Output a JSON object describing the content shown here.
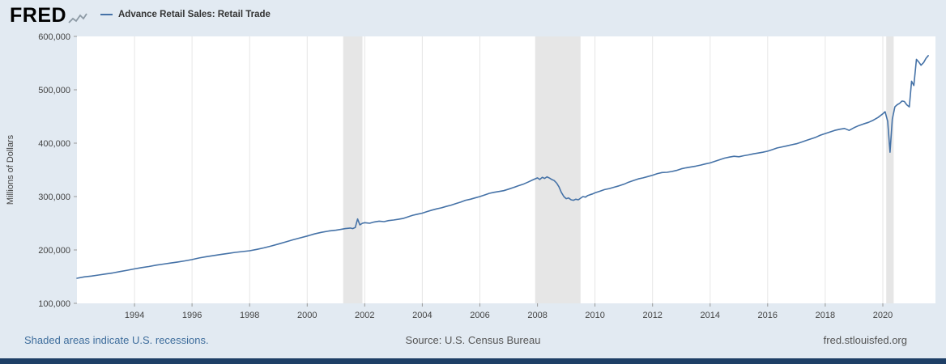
{
  "header": {
    "logo": "FRED",
    "legend_label": "Advance Retail Sales: Retail Trade"
  },
  "footer": {
    "recession_note": "Shaded areas indicate U.S. recessions.",
    "source": "Source: U.S. Census Bureau",
    "site": "fred.stlouisfed.org"
  },
  "colors": {
    "background": "#e2eaf2",
    "line": "#4572a7",
    "recession_band": "#e6e6e6",
    "gridline": "#e6e6e6",
    "link_blue": "#3e6d9c",
    "bottom_bar": "#1e3f66"
  },
  "chart_data": {
    "type": "line",
    "title": "Advance Retail Sales: Retail Trade",
    "xlabel": "",
    "ylabel": "Millions of Dollars",
    "xlim": [
      1992.0,
      2021.83
    ],
    "ylim": [
      100000,
      600000
    ],
    "grid": "vertical-only",
    "legend_position": "top-left",
    "line_color": "#4572a7",
    "recession_color": "#e6e6e6",
    "grid_color": "#e6e6e6",
    "tick_color": "#999999",
    "y_ticks": [
      {
        "value": 100000,
        "label": "100,000"
      },
      {
        "value": 200000,
        "label": "200,000"
      },
      {
        "value": 300000,
        "label": "300,000"
      },
      {
        "value": 400000,
        "label": "400,000"
      },
      {
        "value": 500000,
        "label": "500,000"
      },
      {
        "value": 600000,
        "label": "600,000"
      }
    ],
    "x_ticks": [
      {
        "value": 1994,
        "label": "1994"
      },
      {
        "value": 1996,
        "label": "1996"
      },
      {
        "value": 1998,
        "label": "1998"
      },
      {
        "value": 2000,
        "label": "2000"
      },
      {
        "value": 2002,
        "label": "2002"
      },
      {
        "value": 2004,
        "label": "2004"
      },
      {
        "value": 2006,
        "label": "2006"
      },
      {
        "value": 2008,
        "label": "2008"
      },
      {
        "value": 2010,
        "label": "2010"
      },
      {
        "value": 2012,
        "label": "2012"
      },
      {
        "value": 2014,
        "label": "2014"
      },
      {
        "value": 2016,
        "label": "2016"
      },
      {
        "value": 2018,
        "label": "2018"
      },
      {
        "value": 2020,
        "label": "2020"
      }
    ],
    "recessions": [
      [
        2001.25,
        2001.92
      ],
      [
        2007.92,
        2009.5
      ],
      [
        2020.12,
        2020.38
      ]
    ],
    "series": [
      {
        "name": "Advance Retail Sales: Retail Trade",
        "units": "Millions of Dollars",
        "points": [
          [
            1992.0,
            147000
          ],
          [
            1992.25,
            149500
          ],
          [
            1992.5,
            151000
          ],
          [
            1992.75,
            153000
          ],
          [
            1993.0,
            155000
          ],
          [
            1993.25,
            157000
          ],
          [
            1993.5,
            159500
          ],
          [
            1993.75,
            162000
          ],
          [
            1994.0,
            164500
          ],
          [
            1994.25,
            167000
          ],
          [
            1994.5,
            169000
          ],
          [
            1994.75,
            171500
          ],
          [
            1995.0,
            173500
          ],
          [
            1995.25,
            175500
          ],
          [
            1995.5,
            177500
          ],
          [
            1995.75,
            179500
          ],
          [
            1996.0,
            182000
          ],
          [
            1996.25,
            185000
          ],
          [
            1996.5,
            187500
          ],
          [
            1996.75,
            189500
          ],
          [
            1997.0,
            191500
          ],
          [
            1997.25,
            193500
          ],
          [
            1997.5,
            195500
          ],
          [
            1997.75,
            197000
          ],
          [
            1998.0,
            198500
          ],
          [
            1998.25,
            201000
          ],
          [
            1998.5,
            204000
          ],
          [
            1998.75,
            207500
          ],
          [
            1999.0,
            211000
          ],
          [
            1999.25,
            215000
          ],
          [
            1999.5,
            219000
          ],
          [
            1999.75,
            222500
          ],
          [
            2000.0,
            226000
          ],
          [
            2000.25,
            230000
          ],
          [
            2000.5,
            233000
          ],
          [
            2000.75,
            235500
          ],
          [
            2001.0,
            237000
          ],
          [
            2001.17,
            238500
          ],
          [
            2001.33,
            240000
          ],
          [
            2001.5,
            241000
          ],
          [
            2001.58,
            240000
          ],
          [
            2001.67,
            242000
          ],
          [
            2001.75,
            258000
          ],
          [
            2001.83,
            247000
          ],
          [
            2001.92,
            250000
          ],
          [
            2002.0,
            251000
          ],
          [
            2002.17,
            250000
          ],
          [
            2002.33,
            252500
          ],
          [
            2002.5,
            254000
          ],
          [
            2002.67,
            253000
          ],
          [
            2002.83,
            255000
          ],
          [
            2003.0,
            256000
          ],
          [
            2003.17,
            257500
          ],
          [
            2003.33,
            259000
          ],
          [
            2003.5,
            262000
          ],
          [
            2003.67,
            265000
          ],
          [
            2003.83,
            267000
          ],
          [
            2004.0,
            269000
          ],
          [
            2004.17,
            272000
          ],
          [
            2004.33,
            274500
          ],
          [
            2004.5,
            277000
          ],
          [
            2004.67,
            279000
          ],
          [
            2004.83,
            281500
          ],
          [
            2005.0,
            284000
          ],
          [
            2005.17,
            287000
          ],
          [
            2005.33,
            289500
          ],
          [
            2005.5,
            293000
          ],
          [
            2005.67,
            295000
          ],
          [
            2005.83,
            297500
          ],
          [
            2006.0,
            300000
          ],
          [
            2006.17,
            303000
          ],
          [
            2006.33,
            306000
          ],
          [
            2006.5,
            308000
          ],
          [
            2006.67,
            309500
          ],
          [
            2006.83,
            311000
          ],
          [
            2007.0,
            314000
          ],
          [
            2007.17,
            317000
          ],
          [
            2007.33,
            320000
          ],
          [
            2007.5,
            323000
          ],
          [
            2007.67,
            327000
          ],
          [
            2007.83,
            331000
          ],
          [
            2008.0,
            335000
          ],
          [
            2008.08,
            332000
          ],
          [
            2008.17,
            336000
          ],
          [
            2008.25,
            334000
          ],
          [
            2008.33,
            337000
          ],
          [
            2008.42,
            334500
          ],
          [
            2008.5,
            332000
          ],
          [
            2008.58,
            330000
          ],
          [
            2008.67,
            325000
          ],
          [
            2008.75,
            318000
          ],
          [
            2008.83,
            308000
          ],
          [
            2008.92,
            300000
          ],
          [
            2009.0,
            296000
          ],
          [
            2009.08,
            297500
          ],
          [
            2009.17,
            294000
          ],
          [
            2009.25,
            293000
          ],
          [
            2009.33,
            295000
          ],
          [
            2009.42,
            294000
          ],
          [
            2009.5,
            297000
          ],
          [
            2009.58,
            300000
          ],
          [
            2009.67,
            299000
          ],
          [
            2009.75,
            302000
          ],
          [
            2009.83,
            303500
          ],
          [
            2009.92,
            305000
          ],
          [
            2010.0,
            307000
          ],
          [
            2010.17,
            310000
          ],
          [
            2010.33,
            313000
          ],
          [
            2010.5,
            315000
          ],
          [
            2010.67,
            317500
          ],
          [
            2010.83,
            320000
          ],
          [
            2011.0,
            323000
          ],
          [
            2011.17,
            327000
          ],
          [
            2011.33,
            330000
          ],
          [
            2011.5,
            333000
          ],
          [
            2011.67,
            335000
          ],
          [
            2011.83,
            337500
          ],
          [
            2012.0,
            340000
          ],
          [
            2012.17,
            343000
          ],
          [
            2012.33,
            345000
          ],
          [
            2012.5,
            345500
          ],
          [
            2012.67,
            347000
          ],
          [
            2012.83,
            349000
          ],
          [
            2013.0,
            352000
          ],
          [
            2013.17,
            354000
          ],
          [
            2013.33,
            355500
          ],
          [
            2013.5,
            357000
          ],
          [
            2013.67,
            359000
          ],
          [
            2013.83,
            361000
          ],
          [
            2014.0,
            363000
          ],
          [
            2014.17,
            366000
          ],
          [
            2014.33,
            369000
          ],
          [
            2014.5,
            372000
          ],
          [
            2014.67,
            374000
          ],
          [
            2014.83,
            375500
          ],
          [
            2015.0,
            374500
          ],
          [
            2015.17,
            376500
          ],
          [
            2015.33,
            378000
          ],
          [
            2015.5,
            380000
          ],
          [
            2015.67,
            381500
          ],
          [
            2015.83,
            383000
          ],
          [
            2016.0,
            385000
          ],
          [
            2016.17,
            388000
          ],
          [
            2016.33,
            391000
          ],
          [
            2016.5,
            393000
          ],
          [
            2016.67,
            395000
          ],
          [
            2016.83,
            397000
          ],
          [
            2017.0,
            399000
          ],
          [
            2017.17,
            402000
          ],
          [
            2017.33,
            405000
          ],
          [
            2017.5,
            408000
          ],
          [
            2017.67,
            411000
          ],
          [
            2017.83,
            415000
          ],
          [
            2018.0,
            418000
          ],
          [
            2018.17,
            421000
          ],
          [
            2018.33,
            424000
          ],
          [
            2018.5,
            426000
          ],
          [
            2018.67,
            427500
          ],
          [
            2018.83,
            424000
          ],
          [
            2019.0,
            429000
          ],
          [
            2019.17,
            433000
          ],
          [
            2019.33,
            436000
          ],
          [
            2019.5,
            439000
          ],
          [
            2019.67,
            443000
          ],
          [
            2019.83,
            448000
          ],
          [
            2020.0,
            455000
          ],
          [
            2020.08,
            459000
          ],
          [
            2020.17,
            441000
          ],
          [
            2020.25,
            383000
          ],
          [
            2020.33,
            445000
          ],
          [
            2020.42,
            468000
          ],
          [
            2020.5,
            472000
          ],
          [
            2020.58,
            474500
          ],
          [
            2020.67,
            479000
          ],
          [
            2020.75,
            478000
          ],
          [
            2020.83,
            472000
          ],
          [
            2020.92,
            468000
          ],
          [
            2021.0,
            516000
          ],
          [
            2021.08,
            508000
          ],
          [
            2021.17,
            557000
          ],
          [
            2021.25,
            552000
          ],
          [
            2021.33,
            546000
          ],
          [
            2021.42,
            551000
          ],
          [
            2021.5,
            559000
          ],
          [
            2021.58,
            564000
          ]
        ]
      }
    ]
  }
}
